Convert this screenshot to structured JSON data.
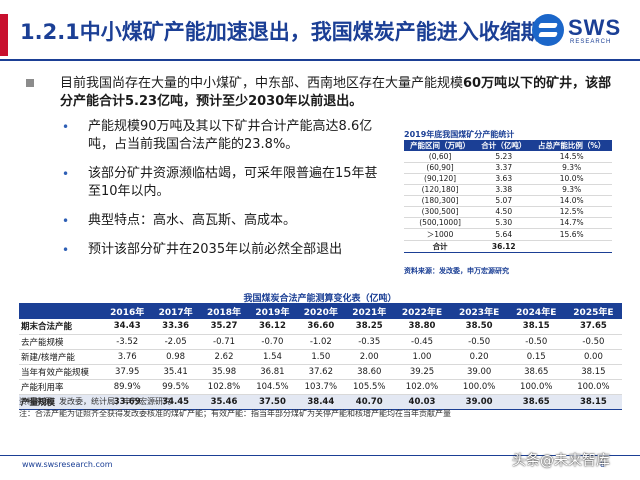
{
  "header": {
    "title": "1.2.1中小煤矿产能加速退出，我国煤炭产能进入收缩期",
    "logo_text": "SWS",
    "logo_sub": "RESEARCH"
  },
  "lead": {
    "part1": "目前我国尚存在大量的中小煤矿，中东部、西南地区存在大量产能规模",
    "part2": "60万吨以下的矿井，该部分产能合计5.23亿吨，预计至少2030年以前退出。"
  },
  "bullets": [
    "产能规模90万吨及其以下矿井合计产能高达8.6亿吨，占当前我国合法产能的23.8%。",
    "该部分矿井资源濒临枯竭，可采年限普遍在15年甚至10年以内。",
    "典型特点：高水、高瓦斯、高成本。",
    "预计该部分矿井在2035年以前必然全部退出"
  ],
  "small_table": {
    "title": "2019年底我国煤矿分产能统计",
    "headers": [
      "产能区间（万吨）",
      "合计（亿吨）",
      "占总产能比例（%）"
    ],
    "rows": [
      [
        "(0,60]",
        "5.23",
        "14.5%"
      ],
      [
        "(60,90]",
        "3.37",
        "9.3%"
      ],
      [
        "(90,120]",
        "3.63",
        "10.0%"
      ],
      [
        "(120,180]",
        "3.38",
        "9.3%"
      ],
      [
        "(180,300]",
        "5.07",
        "14.0%"
      ],
      [
        "(300,500]",
        "4.50",
        "12.5%"
      ],
      [
        "(500,1000]",
        "5.30",
        "14.7%"
      ],
      [
        "＞1000",
        "5.64",
        "15.6%"
      ]
    ],
    "sum": [
      "合计",
      "36.12",
      ""
    ],
    "source": "资料来源：发改委，申万宏源研究"
  },
  "big_table": {
    "title": "我国煤炭合法产能测算变化表（亿吨）",
    "headers": [
      "",
      "2016年",
      "2017年",
      "2018年",
      "2019年",
      "2020年",
      "2021年",
      "2022年E",
      "2023年E",
      "2024年E",
      "2025年E"
    ],
    "rows": [
      {
        "style": "bold",
        "cells": [
          "期末合法产能",
          "34.43",
          "33.36",
          "35.27",
          "36.12",
          "36.60",
          "38.25",
          "38.80",
          "38.50",
          "38.15",
          "37.65"
        ]
      },
      {
        "style": "",
        "cells": [
          "去产能规模",
          "-3.52",
          "-2.05",
          "-0.71",
          "-0.70",
          "-1.02",
          "-0.35",
          "-0.45",
          "-0.50",
          "-0.50",
          "-0.50"
        ]
      },
      {
        "style": "",
        "cells": [
          "新建/核增产能",
          "3.76",
          "0.98",
          "2.62",
          "1.54",
          "1.50",
          "2.00",
          "1.00",
          "0.20",
          "0.15",
          "0.00"
        ]
      },
      {
        "style": "",
        "cells": [
          "当年有效产能规模",
          "37.95",
          "35.41",
          "35.98",
          "36.81",
          "37.62",
          "38.60",
          "39.25",
          "39.00",
          "38.65",
          "38.15"
        ]
      },
      {
        "style": "",
        "cells": [
          "产能利用率",
          "89.9%",
          "99.5%",
          "102.8%",
          "104.5%",
          "103.7%",
          "105.5%",
          "102.0%",
          "100.0%",
          "100.0%",
          "100.0%"
        ]
      },
      {
        "style": "total",
        "cells": [
          "产量规模",
          "33.69",
          "34.45",
          "35.46",
          "37.50",
          "38.44",
          "40.70",
          "40.03",
          "39.00",
          "38.65",
          "38.15"
        ]
      }
    ],
    "source": "资料来源：发改委，统计局，申万宏源研究",
    "note": "注：合法产能为证照齐全获得发改委核准的煤矿产能；有效产能：指当年部分煤矿为关停产能和核增产能均在当年贡献产量"
  },
  "footer": {
    "website": "www.swsresearch.com",
    "page": "8",
    "watermark": "头条@未来智库"
  },
  "colors": {
    "brand_blue": "#1b3f95",
    "accent_red": "#c8102e"
  }
}
